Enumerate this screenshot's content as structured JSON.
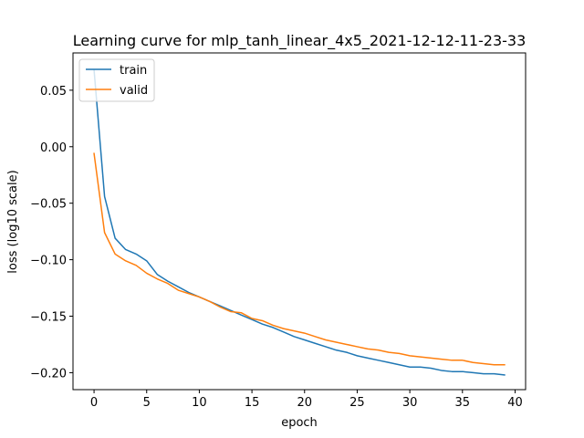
{
  "chart_data": {
    "type": "line",
    "title": "Learning curve for mlp_tanh_linear_4x5_2021-12-12-11-23-33",
    "xlabel": "epoch",
    "ylabel": "loss (log10 scale)",
    "xlim": [
      -2,
      41
    ],
    "ylim": [
      -0.215,
      0.083
    ],
    "xticks": [
      0,
      5,
      10,
      15,
      20,
      25,
      30,
      35,
      40
    ],
    "yticks": [
      0.05,
      0.0,
      -0.05,
      -0.1,
      -0.15,
      -0.2
    ],
    "ytick_labels": [
      "0.05",
      "0.00",
      "−0.05",
      "−0.10",
      "−0.15",
      "−0.20"
    ],
    "grid": false,
    "legend_position": "top-left",
    "series": [
      {
        "name": "train",
        "color": "#1f77b4",
        "x": [
          0,
          1,
          2,
          3,
          4,
          5,
          6,
          7,
          8,
          9,
          10,
          11,
          12,
          13,
          14,
          15,
          16,
          17,
          18,
          19,
          20,
          21,
          22,
          23,
          24,
          25,
          26,
          27,
          28,
          29,
          30,
          31,
          32,
          33,
          34,
          35,
          36,
          37,
          38,
          39
        ],
        "y": [
          0.068,
          -0.044,
          -0.081,
          -0.091,
          -0.095,
          -0.101,
          -0.113,
          -0.119,
          -0.124,
          -0.129,
          -0.133,
          -0.137,
          -0.141,
          -0.145,
          -0.149,
          -0.153,
          -0.157,
          -0.16,
          -0.164,
          -0.168,
          -0.171,
          -0.174,
          -0.177,
          -0.18,
          -0.182,
          -0.185,
          -0.187,
          -0.189,
          -0.191,
          -0.193,
          -0.195,
          -0.195,
          -0.196,
          -0.198,
          -0.199,
          -0.199,
          -0.2,
          -0.201,
          -0.201,
          -0.202
        ]
      },
      {
        "name": "valid",
        "color": "#ff7f0e",
        "x": [
          0,
          1,
          2,
          3,
          4,
          5,
          6,
          7,
          8,
          9,
          10,
          11,
          12,
          13,
          14,
          15,
          16,
          17,
          18,
          19,
          20,
          21,
          22,
          23,
          24,
          25,
          26,
          27,
          28,
          29,
          30,
          31,
          32,
          33,
          34,
          35,
          36,
          37,
          38,
          39
        ],
        "y": [
          -0.006,
          -0.076,
          -0.095,
          -0.101,
          -0.105,
          -0.112,
          -0.117,
          -0.121,
          -0.127,
          -0.13,
          -0.133,
          -0.137,
          -0.142,
          -0.146,
          -0.147,
          -0.152,
          -0.154,
          -0.158,
          -0.161,
          -0.163,
          -0.165,
          -0.168,
          -0.171,
          -0.173,
          -0.175,
          -0.177,
          -0.179,
          -0.18,
          -0.182,
          -0.183,
          -0.185,
          -0.186,
          -0.187,
          -0.188,
          -0.189,
          -0.189,
          -0.191,
          -0.192,
          -0.193,
          -0.193
        ]
      }
    ]
  }
}
